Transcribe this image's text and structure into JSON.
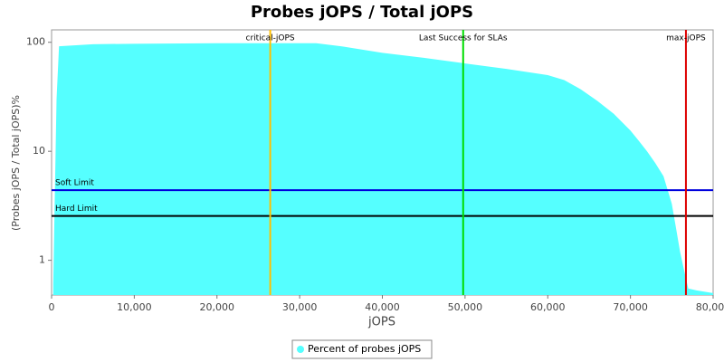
{
  "chart_data": {
    "type": "area",
    "title": "Probes jOPS / Total jOPS",
    "x_label": "jOPS",
    "y_label": "(Probes jOPS / Total jOPS)%",
    "log_y": true,
    "legend": "bottom",
    "x": [
      200,
      600,
      900,
      5000,
      10000,
      20000,
      32000,
      35000,
      40000,
      45000,
      50000,
      55000,
      60000,
      62000,
      64000,
      66000,
      68000,
      70000,
      71000,
      72000,
      73000,
      74000,
      75000,
      75500,
      76000,
      76500,
      77000,
      78000,
      80000
    ],
    "series": [
      {
        "name": "Percent of probes jOPS",
        "color": "#55ffff",
        "values": [
          0.6,
          30,
          92,
          96,
          97,
          98,
          98,
          92,
          80,
          72,
          64,
          57,
          50,
          45,
          37,
          29,
          22,
          15.5,
          12.5,
          10,
          7.8,
          5.9,
          3.3,
          2,
          1.2,
          0.8,
          0.55,
          0.53,
          0.5
        ]
      }
    ],
    "xlim": [
      0,
      80000
    ],
    "ylim": [
      0.48,
      130
    ],
    "xticks": [
      0,
      {
        "value": 10000,
        "label": "10,000"
      },
      {
        "value": 20000,
        "label": "20,000"
      },
      {
        "value": 30000,
        "label": "30,000"
      },
      {
        "value": 40000,
        "label": "40,000"
      },
      {
        "value": 50000,
        "label": "50,000"
      },
      {
        "value": 60000,
        "label": "60,000"
      },
      {
        "value": 70000,
        "label": "70,000"
      },
      {
        "value": 80000,
        "label": "80,000"
      }
    ],
    "yticks": [
      1,
      10,
      100
    ],
    "vlines": [
      {
        "label": "critical-jOPS",
        "value": 26440,
        "color": "#ffc000"
      },
      {
        "label": "Last Success for SLAs",
        "value": 49770,
        "color": "#00dd00"
      },
      {
        "label": "max-jOPS",
        "value": 76710,
        "color": "#dd0000"
      }
    ],
    "hlines": [
      {
        "label": "Soft Limit",
        "value": 4.4,
        "color": "#0000dd"
      },
      {
        "label": "Hard Limit",
        "value": 2.55,
        "color": "#000000"
      }
    ]
  }
}
